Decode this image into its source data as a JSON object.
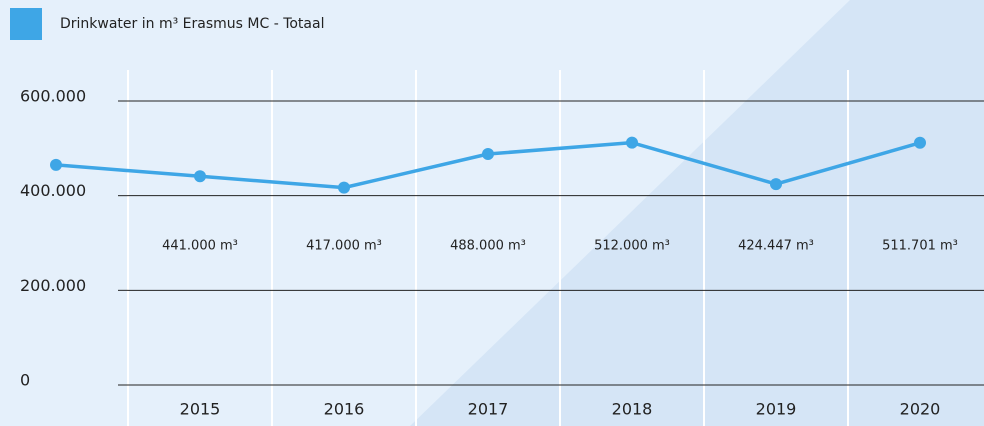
{
  "chart_data": {
    "type": "line",
    "categories": [
      null,
      "2015",
      "2016",
      "2017",
      "2018",
      "2019",
      "2020"
    ],
    "series": [
      {
        "name": "Drinkwater in m³ Erasmus MC - Totaal",
        "color": "#3ea6e6",
        "values": [
          465000,
          441000,
          417000,
          488000,
          512000,
          424447,
          511701
        ],
        "value_labels": [
          null,
          "441.000 m³",
          "417.000 m³",
          "488.000 m³",
          "512.000 m³",
          "424.447 m³",
          "511.701 m³"
        ]
      }
    ],
    "ylim": [
      0,
      600000
    ],
    "yticks": [
      0,
      {
        "value": 200000,
        "label": "200.000"
      },
      {
        "value": 400000,
        "label": "400.000"
      },
      {
        "value": 600000,
        "label": "600.000"
      }
    ],
    "grid": true
  }
}
